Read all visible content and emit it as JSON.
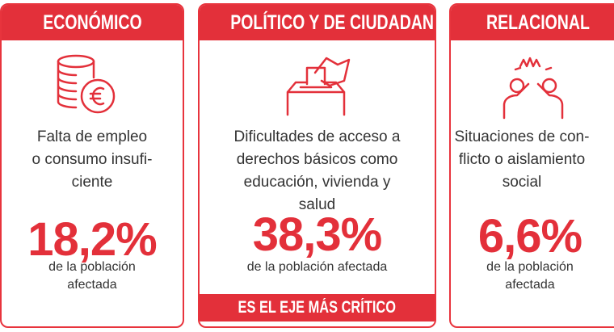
{
  "cards": [
    {
      "header": "ECONÓMICO",
      "description": [
        "Falta de empleo",
        "o consumo insufi-",
        "ciente"
      ],
      "percent": "18,2%",
      "subtext": [
        "de la población",
        "afectada"
      ]
    },
    {
      "header": "POLÍTICO Y DE CIUDADANÍA",
      "description": [
        "Dificultades de acceso a",
        "derechos básicos como",
        "educación, vivienda y",
        "salud"
      ],
      "percent": "38,3%",
      "subtext": [
        "de la población afectada"
      ],
      "footer": "ES EL EJE MÁS CRÍTICO"
    },
    {
      "header": "RELACIONAL",
      "description": [
        "Situaciones de con-",
        "flicto o aislamiento",
        "social"
      ],
      "percent": "6,6%",
      "subtext": [
        "de la población",
        "afectada"
      ]
    }
  ]
}
